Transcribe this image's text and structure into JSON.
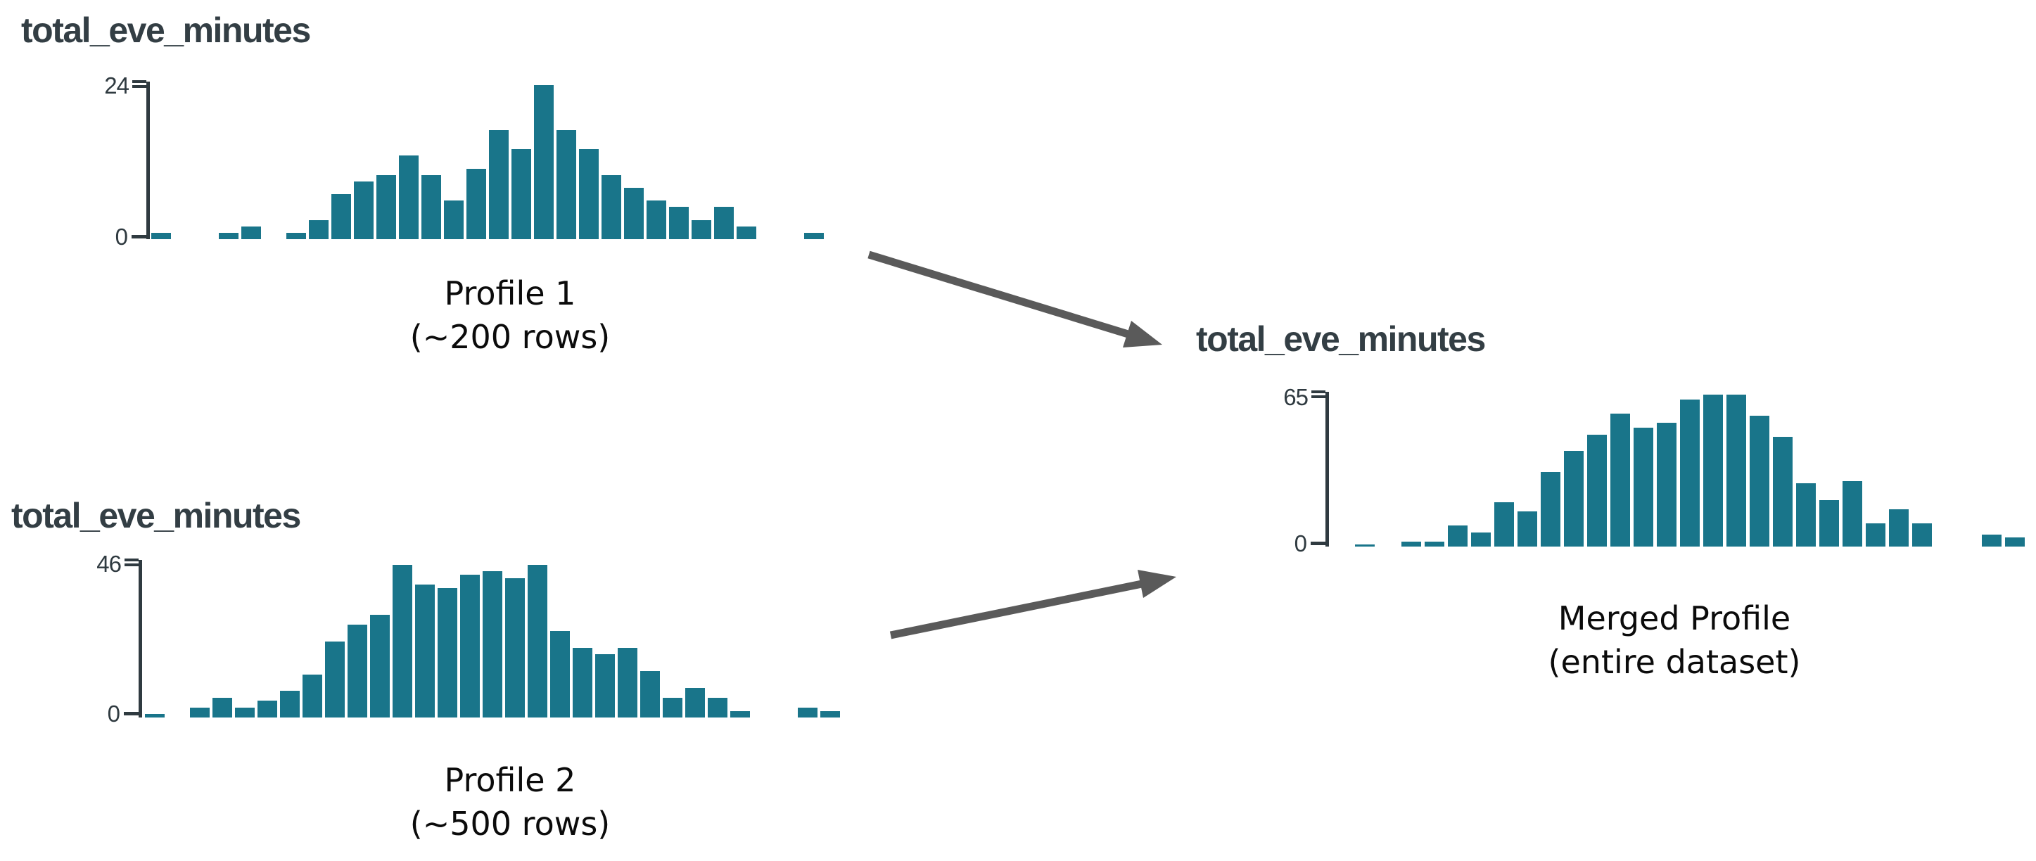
{
  "colors": {
    "background": "#ffffff",
    "bar": "#19758a",
    "axis": "#2f3a40",
    "title": "#333e44",
    "caption": "#0b0b0b",
    "arrow": "#5a5a5a"
  },
  "charts": [
    {
      "title": "total_eve_minutes",
      "y_max_label": "24",
      "y_zero_label": "0",
      "caption": [
        "Profile 1",
        "(~200 rows)"
      ]
    },
    {
      "title": "total_eve_minutes",
      "y_max_label": "46",
      "y_zero_label": "0",
      "caption": [
        "Profile 2",
        "(~500 rows)"
      ]
    },
    {
      "title": "total_eve_minutes",
      "y_max_label": "65",
      "y_zero_label": "0",
      "caption": [
        "Merged Profile",
        "(entire dataset)"
      ]
    }
  ],
  "arrows": [
    {
      "from": "Profile 1",
      "to": "Merged Profile"
    },
    {
      "from": "Profile 2",
      "to": "Merged Profile"
    }
  ],
  "chart_data": [
    {
      "id": "profile-1",
      "type": "bar",
      "title": "total_eve_minutes",
      "label": "Profile 1 (~200 rows)",
      "xlabel": "",
      "ylabel": "",
      "y_min": 0,
      "y_max": 24,
      "x_axis": "unlabeled histogram bins of total_eve_minutes",
      "values": [
        1,
        0,
        0,
        1,
        2,
        0,
        1,
        3,
        7,
        9,
        10,
        13,
        10,
        6,
        11,
        17,
        14,
        24,
        17,
        14,
        10,
        8,
        6,
        5,
        3,
        5,
        2,
        0,
        0,
        1
      ],
      "legend": "none",
      "grid": false
    },
    {
      "id": "profile-2",
      "type": "bar",
      "title": "total_eve_minutes",
      "label": "Profile 2 (~500 rows)",
      "xlabel": "",
      "ylabel": "",
      "y_min": 0,
      "y_max": 46,
      "x_axis": "unlabeled histogram bins of total_eve_minutes",
      "values": [
        1,
        0,
        3,
        6,
        3,
        5,
        8,
        13,
        23,
        28,
        31,
        46,
        40,
        39,
        43,
        44,
        42,
        46,
        26,
        21,
        19,
        21,
        14,
        6,
        9,
        6,
        2,
        0,
        0,
        3,
        2
      ],
      "legend": "none",
      "grid": false
    },
    {
      "id": "merged-profile",
      "type": "bar",
      "title": "total_eve_minutes",
      "label": "Merged Profile (entire dataset)",
      "xlabel": "",
      "ylabel": "",
      "y_min": 0,
      "y_max": 65,
      "x_axis": "unlabeled histogram bins of total_eve_minutes",
      "values": [
        1,
        0,
        2,
        2,
        9,
        6,
        19,
        15,
        32,
        41,
        48,
        57,
        51,
        53,
        63,
        65,
        65,
        56,
        47,
        27,
        20,
        28,
        10,
        16,
        10,
        0,
        0,
        5,
        4
      ],
      "legend": "none",
      "grid": false
    }
  ]
}
